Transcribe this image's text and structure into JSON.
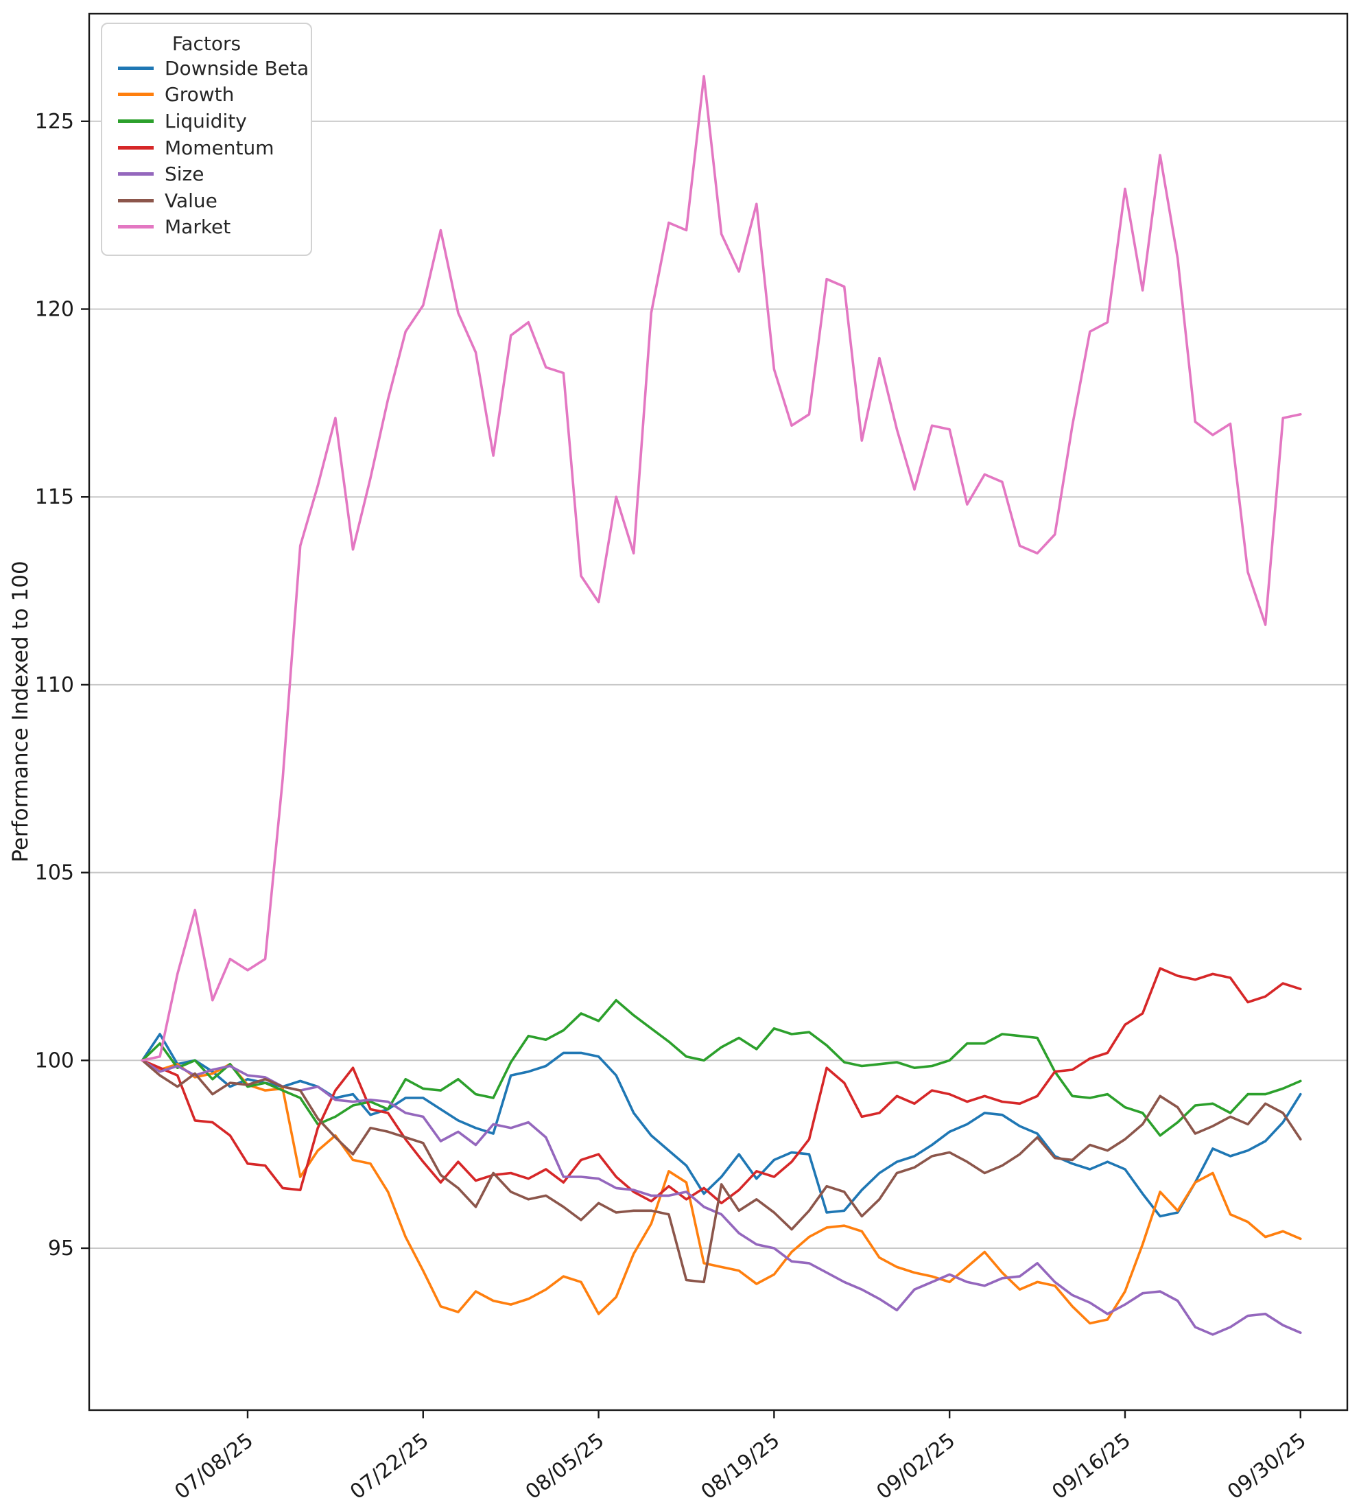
{
  "figure": {
    "ylabel": "Performance Indexed to 100"
  },
  "legend": {
    "title": "Factors",
    "position": "upper left",
    "entries": [
      {
        "label": "Downside Beta",
        "color": "#1f77b4"
      },
      {
        "label": "Growth",
        "color": "#ff7f0e"
      },
      {
        "label": "Liquidity",
        "color": "#2ca02c"
      },
      {
        "label": "Momentum",
        "color": "#d62728"
      },
      {
        "label": "Size",
        "color": "#9467bd"
      },
      {
        "label": "Value",
        "color": "#8c564b"
      },
      {
        "label": "Market",
        "color": "#e377c2"
      }
    ]
  },
  "chart_data": {
    "type": "line",
    "title": "",
    "xlabel": "",
    "ylabel": "Performance Indexed to 100",
    "grid": true,
    "legend_position": "upper left",
    "num_points": 67,
    "x_start_date": "06/30/25",
    "x_end_date": "09/30/25",
    "x_frequency": "business days",
    "x_tick_labels": [
      "07/08/25",
      "07/22/25",
      "08/05/25",
      "08/19/25",
      "09/02/25",
      "09/16/25",
      "09/30/25"
    ],
    "x_tick_indices": [
      6,
      16,
      26,
      36,
      46,
      56,
      66
    ],
    "y_ticks": [
      95,
      100,
      105,
      110,
      115,
      120,
      125
    ],
    "ylim": [
      91.0,
      127.9
    ],
    "series": [
      {
        "name": "Downside Beta",
        "color": "#1f77b4",
        "values": [
          100,
          100.7,
          99.9,
          100.0,
          99.7,
          99.3,
          99.5,
          99.4,
          99.3,
          99.45,
          99.3,
          99.0,
          99.1,
          98.55,
          98.7,
          99.0,
          99.0,
          98.7,
          98.4,
          98.2,
          98.05,
          99.6,
          99.7,
          99.85,
          100.2,
          100.2,
          100.1,
          99.6,
          98.6,
          98.0,
          97.6,
          97.2,
          96.45,
          96.9,
          97.5,
          96.85,
          97.35,
          97.55,
          97.5,
          95.95,
          96.0,
          96.55,
          97.0,
          97.3,
          97.45,
          97.75,
          98.1,
          98.3,
          98.6,
          98.55,
          98.25,
          98.05,
          97.45,
          97.25,
          97.1,
          97.3,
          97.1,
          96.45,
          95.85,
          95.95,
          96.75,
          97.65,
          97.45,
          97.6,
          97.85,
          98.35,
          99.1
        ]
      },
      {
        "name": "Growth",
        "color": "#ff7f0e",
        "values": [
          100,
          99.75,
          99.9,
          99.55,
          99.65,
          99.9,
          99.35,
          99.2,
          99.25,
          96.9,
          97.6,
          98.0,
          97.35,
          97.25,
          96.5,
          95.3,
          94.4,
          93.45,
          93.3,
          93.85,
          93.6,
          93.5,
          93.65,
          93.9,
          94.25,
          94.1,
          93.25,
          93.7,
          94.85,
          95.65,
          97.05,
          96.75,
          94.6,
          94.5,
          94.4,
          94.05,
          94.3,
          94.9,
          95.3,
          95.55,
          95.6,
          95.45,
          94.75,
          94.5,
          94.35,
          94.25,
          94.1,
          94.5,
          94.9,
          94.35,
          93.9,
          94.1,
          94.0,
          93.45,
          93.0,
          93.1,
          93.85,
          95.1,
          96.5,
          96.0,
          96.75,
          97.0,
          95.9,
          95.7,
          95.3,
          95.45,
          95.25
        ]
      },
      {
        "name": "Liquidity",
        "color": "#2ca02c",
        "values": [
          100,
          100.45,
          99.8,
          100.0,
          99.5,
          99.9,
          99.3,
          99.4,
          99.2,
          99.0,
          98.3,
          98.5,
          98.8,
          98.9,
          98.7,
          99.5,
          99.25,
          99.2,
          99.5,
          99.1,
          99.0,
          99.95,
          100.65,
          100.55,
          100.8,
          101.25,
          101.05,
          101.6,
          101.2,
          100.85,
          100.5,
          100.1,
          100.0,
          100.35,
          100.6,
          100.3,
          100.85,
          100.7,
          100.75,
          100.4,
          99.95,
          99.85,
          99.9,
          99.95,
          99.8,
          99.85,
          100.0,
          100.45,
          100.45,
          100.7,
          100.65,
          100.6,
          99.7,
          99.05,
          99.0,
          99.1,
          98.75,
          98.6,
          98.0,
          98.35,
          98.8,
          98.85,
          98.6,
          99.1,
          99.1,
          99.25,
          99.45
        ]
      },
      {
        "name": "Momentum",
        "color": "#d62728",
        "values": [
          100,
          99.8,
          99.6,
          98.4,
          98.35,
          98.0,
          97.25,
          97.2,
          96.6,
          96.55,
          98.2,
          99.2,
          99.8,
          98.7,
          98.6,
          97.9,
          97.3,
          96.75,
          97.3,
          96.8,
          96.95,
          97.0,
          96.85,
          97.1,
          96.75,
          97.35,
          97.5,
          96.9,
          96.5,
          96.25,
          96.65,
          96.3,
          96.6,
          96.2,
          96.55,
          97.05,
          96.9,
          97.3,
          97.9,
          99.8,
          99.4,
          98.5,
          98.6,
          99.05,
          98.85,
          99.2,
          99.1,
          98.9,
          99.05,
          98.9,
          98.85,
          99.05,
          99.7,
          99.75,
          100.05,
          100.2,
          100.95,
          101.25,
          102.45,
          102.25,
          102.15,
          102.3,
          102.2,
          101.55,
          101.7,
          102.05,
          101.9
        ]
      },
      {
        "name": "Size",
        "color": "#9467bd",
        "values": [
          100,
          99.7,
          99.85,
          99.6,
          99.75,
          99.85,
          99.6,
          99.55,
          99.3,
          99.2,
          99.3,
          98.95,
          98.9,
          98.95,
          98.9,
          98.6,
          98.5,
          97.85,
          98.1,
          97.75,
          98.3,
          98.2,
          98.35,
          97.95,
          96.9,
          96.9,
          96.85,
          96.6,
          96.55,
          96.4,
          96.4,
          96.5,
          96.1,
          95.9,
          95.4,
          95.1,
          95.0,
          94.65,
          94.6,
          94.35,
          94.1,
          93.9,
          93.65,
          93.35,
          93.9,
          94.1,
          94.3,
          94.1,
          94.0,
          94.2,
          94.25,
          94.6,
          94.1,
          93.75,
          93.55,
          93.25,
          93.5,
          93.8,
          93.85,
          93.6,
          92.9,
          92.7,
          92.9,
          93.2,
          93.25,
          92.95,
          92.75
        ]
      },
      {
        "name": "Value",
        "color": "#8c564b",
        "values": [
          100,
          99.6,
          99.3,
          99.65,
          99.1,
          99.4,
          99.35,
          99.5,
          99.3,
          99.2,
          98.45,
          97.95,
          97.5,
          98.2,
          98.1,
          97.95,
          97.8,
          96.95,
          96.6,
          96.1,
          97.0,
          96.5,
          96.3,
          96.4,
          96.1,
          95.75,
          96.2,
          95.95,
          96.0,
          96.0,
          95.9,
          94.15,
          94.1,
          96.7,
          96.0,
          96.3,
          95.95,
          95.5,
          96.0,
          96.65,
          96.5,
          95.85,
          96.3,
          97.0,
          97.15,
          97.45,
          97.55,
          97.3,
          97.0,
          97.2,
          97.5,
          97.95,
          97.4,
          97.35,
          97.75,
          97.6,
          97.9,
          98.3,
          99.05,
          98.75,
          98.05,
          98.25,
          98.5,
          98.3,
          98.85,
          98.6,
          97.9
        ]
      },
      {
        "name": "Market",
        "color": "#e377c2",
        "values": [
          100,
          100.1,
          102.3,
          104.0,
          101.6,
          102.7,
          102.4,
          102.7,
          107.5,
          113.7,
          115.3,
          117.1,
          113.6,
          115.5,
          117.6,
          119.4,
          120.1,
          122.1,
          119.9,
          118.85,
          116.1,
          119.3,
          119.65,
          118.45,
          118.3,
          112.9,
          112.2,
          115.0,
          113.5,
          119.9,
          122.3,
          122.1,
          126.2,
          122.0,
          121.0,
          122.8,
          118.4,
          116.9,
          117.2,
          120.8,
          120.6,
          116.5,
          118.7,
          116.8,
          115.2,
          116.9,
          116.8,
          114.8,
          115.6,
          115.4,
          113.7,
          113.5,
          114.0,
          116.9,
          119.4,
          119.65,
          123.2,
          120.5,
          124.1,
          121.35,
          117.0,
          116.65,
          116.95,
          113.0,
          111.6,
          117.1,
          117.2
        ]
      }
    ]
  },
  "style": {
    "background": "#ffffff",
    "grid_color": "#c8c8c8",
    "spine_color": "#1a1a1a",
    "tick_label_color": "#262626"
  }
}
